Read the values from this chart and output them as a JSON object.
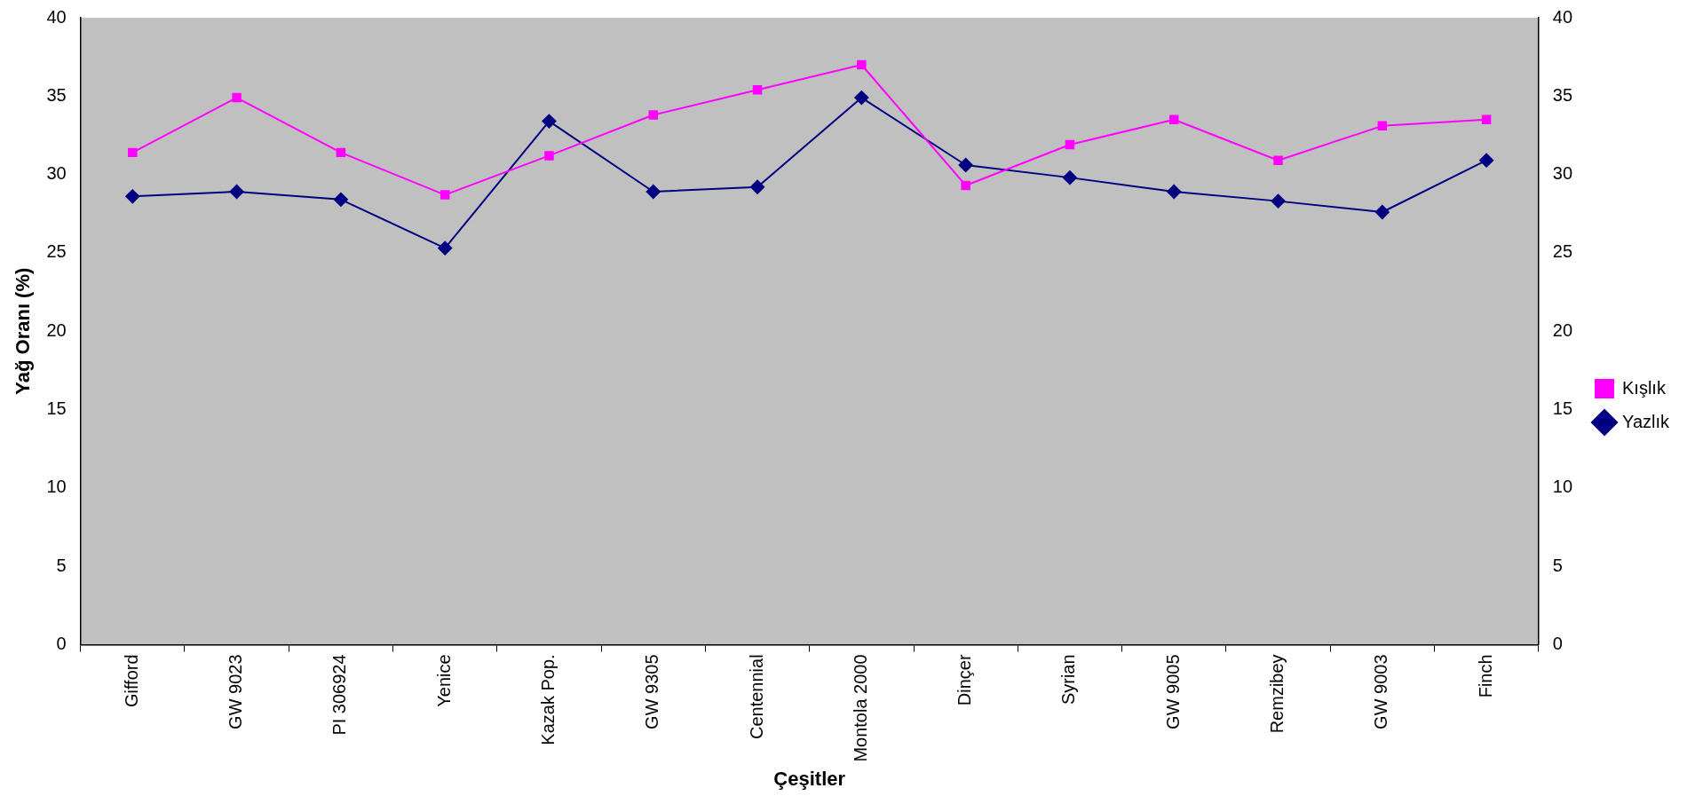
{
  "chart_data": {
    "type": "line",
    "xlabel": "Çeşitler",
    "ylabel": "Yağ Oranı (%)",
    "categories": [
      "Gifford",
      "GW 9023",
      "PI 306924",
      "Yenice",
      "Kazak Pop.",
      "GW 9305",
      "Centennial",
      "Montola 2000",
      "Dinçer",
      "Syrian",
      "GW 9005",
      "Remzibey",
      "GW 9003",
      "Finch"
    ],
    "series": [
      {
        "name": "Kışlık",
        "color": "#ff00ff",
        "marker": "square",
        "values": [
          31.4,
          34.9,
          31.4,
          28.7,
          31.2,
          33.8,
          35.4,
          37.0,
          29.3,
          31.9,
          33.5,
          30.9,
          33.1,
          33.5
        ]
      },
      {
        "name": "Yazlık",
        "color": "#000080",
        "marker": "diamond",
        "values": [
          28.6,
          28.9,
          28.4,
          25.3,
          33.4,
          28.9,
          29.2,
          34.9,
          30.6,
          29.8,
          28.9,
          28.3,
          27.6,
          30.9
        ]
      }
    ],
    "ylim": [
      0,
      40
    ],
    "yticks": [
      0,
      5,
      10,
      15,
      20,
      25,
      30,
      35,
      40
    ],
    "y2lim": [
      0,
      40
    ],
    "y2ticks": [
      0,
      5,
      10,
      15,
      20,
      25,
      30,
      35,
      40
    ],
    "grid": false,
    "legend": "right",
    "line_style": "solid"
  }
}
